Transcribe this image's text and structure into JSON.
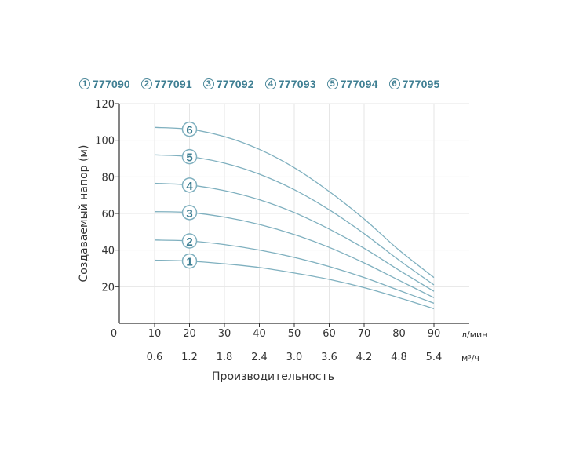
{
  "legend": [
    {
      "num": "1",
      "label": "777090"
    },
    {
      "num": "2",
      "label": "777091"
    },
    {
      "num": "3",
      "label": "777092"
    },
    {
      "num": "4",
      "label": "777093"
    },
    {
      "num": "5",
      "label": "777094"
    },
    {
      "num": "6",
      "label": "777095"
    }
  ],
  "colors": {
    "curve": "#7fb0bf",
    "grid": "#e6e6e6",
    "axis": "#333333",
    "badge": "#3f7f93"
  },
  "chart_data": {
    "type": "line",
    "ylabel": "Создаваемый напор (м)",
    "xlabel": "Производительность",
    "x_unit": "л/мин",
    "x2_unit": "м³/ч",
    "origin_label": "0",
    "xlim": [
      0,
      90
    ],
    "ylim": [
      0,
      120
    ],
    "x_ticks": [
      10,
      20,
      30,
      40,
      50,
      60,
      70,
      80,
      90
    ],
    "x2_ticks": [
      "0.6",
      "1.2",
      "1.8",
      "2.4",
      "3.0",
      "3.6",
      "4.2",
      "4.8",
      "5.4"
    ],
    "y_ticks": [
      20,
      40,
      60,
      80,
      100,
      120
    ],
    "grid": true,
    "x": [
      10,
      20,
      30,
      40,
      50,
      60,
      70,
      80,
      90
    ],
    "series": [
      {
        "name": "1",
        "values": [
          34.5,
          34,
          32.5,
          30.5,
          27.5,
          24,
          19.5,
          14,
          8
        ]
      },
      {
        "name": "2",
        "values": [
          45.5,
          45,
          43,
          40,
          36,
          31,
          25,
          18,
          11
        ]
      },
      {
        "name": "3",
        "values": [
          61,
          60.5,
          58,
          54,
          48.5,
          41.5,
          33,
          23.5,
          14
        ]
      },
      {
        "name": "4",
        "values": [
          76.5,
          75.5,
          72.5,
          67.5,
          60.5,
          51.5,
          41,
          29,
          17.5
        ]
      },
      {
        "name": "5",
        "values": [
          92,
          91,
          87.5,
          81.5,
          73,
          62,
          49,
          34.5,
          21
        ]
      },
      {
        "name": "6",
        "values": [
          107,
          106,
          102,
          95,
          85,
          72,
          57,
          40,
          25
        ]
      }
    ]
  }
}
